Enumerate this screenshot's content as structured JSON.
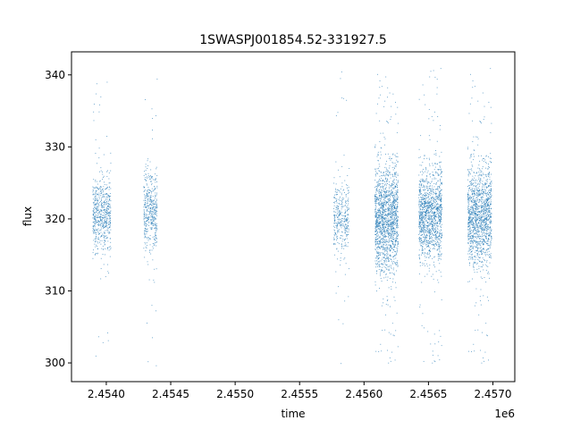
{
  "chart_data": {
    "type": "scatter",
    "title": "1SWASPJ001854.52-331927.5",
    "xlabel": "time",
    "ylabel": "flux",
    "x_offset_label": "1e6",
    "xlim": [
      2453725,
      2457165
    ],
    "ylim": [
      297.4,
      343.2
    ],
    "x_ticks": [
      2453995,
      2454495,
      2454995,
      2455495,
      2455995,
      2456495,
      2456995
    ],
    "x_tick_labels": [
      "2.4540",
      "2.4545",
      "2.4550",
      "2.4555",
      "2.4560",
      "2.4565",
      "2.4570"
    ],
    "y_ticks": [
      300,
      310,
      320,
      330,
      340
    ],
    "y_tick_labels": [
      "300",
      "310",
      "320",
      "330",
      "340"
    ],
    "grid": false,
    "marker_color": "#1f77b4",
    "segments": [
      {
        "x_start": 2453890,
        "x_end": 2454030,
        "center": 320.5,
        "core_spread": 2.6,
        "tail_range": [
          299.5,
          340.0
        ],
        "points": 600
      },
      {
        "x_start": 2454285,
        "x_end": 2454390,
        "center": 321.0,
        "core_spread": 2.8,
        "tail_range": [
          299.5,
          340.0
        ],
        "points": 450
      },
      {
        "x_start": 2455760,
        "x_end": 2455880,
        "center": 320.0,
        "core_spread": 2.5,
        "tail_range": [
          299.8,
          340.5
        ],
        "points": 350
      },
      {
        "x_start": 2456080,
        "x_end": 2456260,
        "center": 320.0,
        "core_spread": 3.6,
        "tail_range": [
          299.5,
          341.0
        ],
        "points": 1600
      },
      {
        "x_start": 2456420,
        "x_end": 2456600,
        "center": 320.5,
        "core_spread": 3.2,
        "tail_range": [
          299.5,
          341.0
        ],
        "points": 1300
      },
      {
        "x_start": 2456800,
        "x_end": 2456985,
        "center": 320.5,
        "core_spread": 3.3,
        "tail_range": [
          299.5,
          341.0
        ],
        "points": 1400
      }
    ]
  }
}
